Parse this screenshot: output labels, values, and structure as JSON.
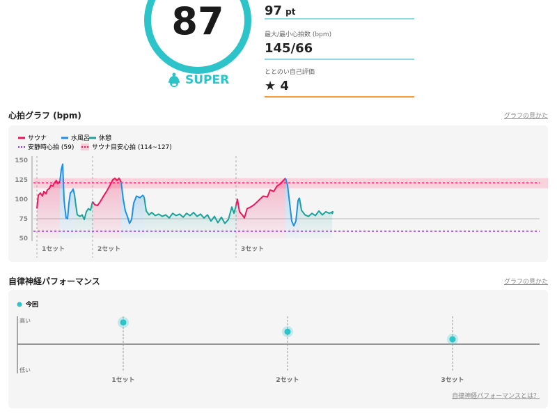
{
  "summary": {
    "score": "87",
    "rank": "SUPER",
    "points": {
      "value": "97",
      "unit": "pt"
    },
    "maxmin": {
      "label": "最大/最小心拍数 (bpm)",
      "value": "145/66"
    },
    "rating": {
      "label": "ととのい自己評価",
      "value": "4"
    }
  },
  "colors": {
    "accent": "#2cc3c9",
    "sauna": "#f0145a",
    "water": "#1e8fe6",
    "rest": "#1aa39a",
    "resting": "#8a2be2",
    "rating_line": "#f59b3c"
  },
  "heart": {
    "title": "心拍グラフ (bpm)",
    "link": "グラフの見かた",
    "legend": {
      "sauna": "サウナ",
      "water": "水風呂",
      "rest": "休憩",
      "resting": "安静時心拍 (59)",
      "target": "サウナ目安心拍 (114~127)"
    }
  },
  "chart_data": [
    {
      "type": "line",
      "title": "心拍グラフ (bpm)",
      "ylabel": "bpm",
      "ylim": [
        50,
        150
      ],
      "yticks": [
        "150",
        "125",
        "100",
        "75",
        "50"
      ],
      "resting_hr": 59,
      "target_range": [
        114,
        127
      ],
      "target_line": 121,
      "sets": [
        {
          "label": "1セット",
          "t": 0
        },
        {
          "label": "2セット",
          "t": 16
        },
        {
          "label": "3セット",
          "t": 57.2
        }
      ],
      "series": [
        {
          "name": "サウナ",
          "kind": "sauna",
          "points": [
            [
              0,
              88
            ],
            [
              0.4,
              105
            ],
            [
              1,
              108
            ],
            [
              1.6,
              104
            ],
            [
              2,
              110
            ],
            [
              2.6,
              107
            ],
            [
              3,
              112
            ],
            [
              3.6,
              114
            ],
            [
              4,
              118
            ],
            [
              4.6,
              117
            ],
            [
              5,
              121
            ],
            [
              5.6,
              124
            ],
            [
              6,
              120
            ],
            [
              6.6,
              123
            ]
          ]
        },
        {
          "name": "水風呂",
          "kind": "water",
          "points": [
            [
              6.6,
              123
            ],
            [
              7,
              138
            ],
            [
              7.4,
              145
            ],
            [
              7.8,
              100
            ],
            [
              8,
              90
            ],
            [
              8.4,
              76
            ],
            [
              8.8,
              75
            ],
            [
              9.2,
              95
            ],
            [
              9.6,
              108
            ],
            [
              10,
              110
            ],
            [
              10.4,
              113
            ],
            [
              10.8,
              106
            ]
          ]
        },
        {
          "name": "休憩",
          "kind": "rest",
          "points": [
            [
              10.8,
              106
            ],
            [
              11.2,
              92
            ],
            [
              11.6,
              80
            ],
            [
              12.4,
              78
            ],
            [
              13,
              80
            ],
            [
              13.6,
              74
            ],
            [
              14.2,
              84
            ],
            [
              14.8,
              88
            ],
            [
              15.4,
              86
            ],
            [
              16,
              97
            ]
          ]
        },
        {
          "name": "サウナ",
          "kind": "sauna",
          "points": [
            [
              16,
              97
            ],
            [
              16.6,
              93
            ],
            [
              17.4,
              92
            ],
            [
              18.2,
              97
            ],
            [
              19,
              103
            ],
            [
              20,
              110
            ],
            [
              21,
              118
            ],
            [
              21.8,
              125
            ],
            [
              22.4,
              127
            ],
            [
              23,
              124
            ],
            [
              23.6,
              127
            ],
            [
              24.2,
              122
            ]
          ]
        },
        {
          "name": "水風呂",
          "kind": "water",
          "points": [
            [
              24.2,
              122
            ],
            [
              24.8,
              100
            ],
            [
              25.4,
              85
            ],
            [
              26,
              78
            ],
            [
              26.6,
              69
            ],
            [
              27.2,
              74
            ],
            [
              27.8,
              95
            ],
            [
              28.6,
              104
            ],
            [
              29.6,
              102
            ],
            [
              30.4,
              105
            ],
            [
              30.8,
              103
            ]
          ]
        },
        {
          "name": "休憩",
          "kind": "rest",
          "points": [
            [
              30.8,
              103
            ],
            [
              31.4,
              85
            ],
            [
              32.2,
              80
            ],
            [
              33,
              83
            ],
            [
              34,
              79
            ],
            [
              35,
              81
            ],
            [
              36,
              78
            ],
            [
              37,
              80
            ],
            [
              38,
              76
            ],
            [
              39,
              82
            ],
            [
              40,
              79
            ],
            [
              41,
              81
            ],
            [
              42,
              77
            ],
            [
              43,
              82
            ],
            [
              44,
              79
            ],
            [
              45,
              83
            ],
            [
              46,
              78
            ],
            [
              47,
              81
            ],
            [
              48,
              76
            ],
            [
              49,
              80
            ],
            [
              50,
              72
            ],
            [
              51,
              78
            ],
            [
              52,
              70
            ],
            [
              53,
              77
            ],
            [
              54,
              69
            ],
            [
              55,
              74
            ],
            [
              56,
              90
            ],
            [
              56.6,
              82
            ],
            [
              57.2,
              92
            ]
          ]
        },
        {
          "name": "サウナ",
          "kind": "sauna",
          "points": [
            [
              57.2,
              92
            ],
            [
              57.6,
              100
            ],
            [
              58.2,
              84
            ],
            [
              59,
              80
            ],
            [
              59.6,
              76
            ],
            [
              60.4,
              88
            ],
            [
              61.4,
              90
            ],
            [
              62.4,
              93
            ],
            [
              63.6,
              98
            ],
            [
              65,
              104
            ],
            [
              66.2,
              103
            ],
            [
              67,
              112
            ],
            [
              68,
              110
            ],
            [
              69,
              117
            ],
            [
              70,
              120
            ],
            [
              70.8,
              124
            ],
            [
              71.4,
              127
            ]
          ]
        },
        {
          "name": "水風呂",
          "kind": "water",
          "points": [
            [
              71.4,
              127
            ],
            [
              72,
              118
            ],
            [
              72.6,
              95
            ],
            [
              73.2,
              72
            ],
            [
              73.8,
              66
            ],
            [
              74.4,
              72
            ],
            [
              75,
              98
            ],
            [
              75.4,
              102
            ]
          ]
        },
        {
          "name": "休憩",
          "kind": "rest",
          "points": [
            [
              75.4,
              102
            ],
            [
              76,
              86
            ],
            [
              77,
              80
            ],
            [
              78,
              78
            ],
            [
              79,
              82
            ],
            [
              80,
              79
            ],
            [
              81,
              85
            ],
            [
              82,
              80
            ],
            [
              83,
              84
            ],
            [
              84,
              82
            ],
            [
              85,
              84
            ],
            [
              84.8,
              81
            ]
          ]
        }
      ]
    },
    {
      "type": "scatter",
      "title": "自律神経パフォーマンス",
      "legend": [
        "今回"
      ],
      "ylabels": {
        "high": "高い",
        "low": "低い"
      },
      "ylim": [
        -1,
        1
      ],
      "categories": [
        "1セット",
        "2セット",
        "3セット"
      ],
      "values": [
        0.89,
        0.51,
        0.2
      ]
    }
  ],
  "ans": {
    "title": "自律神経パフォーマンス",
    "link": "グラフの見かた",
    "legend": "今回",
    "about_link": "自律神経パフォーマンスとは？"
  }
}
